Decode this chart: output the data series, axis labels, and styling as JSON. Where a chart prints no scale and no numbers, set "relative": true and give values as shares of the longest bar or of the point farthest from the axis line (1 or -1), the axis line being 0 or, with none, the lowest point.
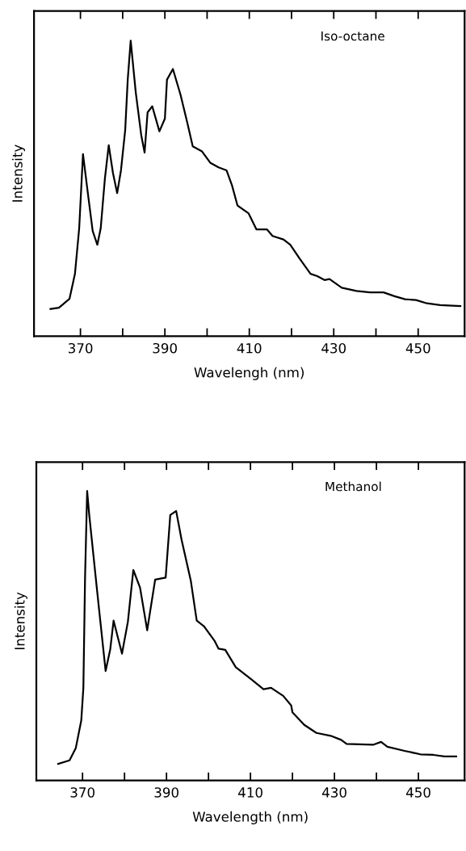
{
  "chart_data": [
    {
      "type": "line",
      "relative": true,
      "xlabel": "Wavelengh (nm)",
      "ylabel": "Intensity",
      "annotations": [
        "Iso-octane"
      ],
      "xlim": [
        359,
        461
      ],
      "xticks": [
        370,
        {
          "value": 380,
          "label": null
        },
        390,
        {
          "value": 400,
          "label": null
        },
        410,
        {
          "value": 420,
          "label": null
        },
        430,
        {
          "value": 440,
          "label": null
        },
        450
      ],
      "tick_labels": "x",
      "grid": false,
      "legend": false,
      "marker": "none",
      "line_style": "solid",
      "series": [
        {
          "color": "#000000",
          "x": [
            362.9,
            364.9,
            367.4,
            368.7,
            369.7,
            370.6,
            371.9,
            372.9,
            374.0,
            374.8,
            375.8,
            376.7,
            377.7,
            378.7,
            379.6,
            380.6,
            381.2,
            381.9,
            383.1,
            384.4,
            385.2,
            385.9,
            387.0,
            388.7,
            390.0,
            390.5,
            391.9,
            393.7,
            395.3,
            396.6,
            398.8,
            400.8,
            402.7,
            404.6,
            405.9,
            407.2,
            409.8,
            411.7,
            414.2,
            415.5,
            418.1,
            419.7,
            421.9,
            424.5,
            426.1,
            427.8,
            429.0,
            431.9,
            435.4,
            438.6,
            441.8,
            444.4,
            446.9,
            449.5,
            452.1,
            455.2,
            460.0
          ],
          "values": [
            0.092,
            0.096,
            0.126,
            0.211,
            0.365,
            0.616,
            0.467,
            0.356,
            0.309,
            0.365,
            0.535,
            0.646,
            0.552,
            0.484,
            0.561,
            0.697,
            0.868,
            1.0,
            0.825,
            0.68,
            0.621,
            0.757,
            0.778,
            0.693,
            0.736,
            0.868,
            0.904,
            0.817,
            0.723,
            0.642,
            0.625,
            0.586,
            0.571,
            0.561,
            0.51,
            0.442,
            0.416,
            0.361,
            0.361,
            0.339,
            0.327,
            0.309,
            0.263,
            0.211,
            0.203,
            0.19,
            0.193,
            0.164,
            0.153,
            0.148,
            0.148,
            0.135,
            0.125,
            0.122,
            0.111,
            0.105,
            0.102
          ]
        }
      ]
    },
    {
      "type": "line",
      "relative": true,
      "xlabel": "Wavelength (nm)",
      "ylabel": "Intensity",
      "annotations": [
        "Methanol"
      ],
      "xlim": [
        359,
        461
      ],
      "xticks": [
        370,
        {
          "value": 380,
          "label": null
        },
        390,
        {
          "value": 400,
          "label": null
        },
        410,
        {
          "value": 420,
          "label": null
        },
        430,
        {
          "value": 440,
          "label": null
        },
        450
      ],
      "tick_labels": "x",
      "grid": false,
      "legend": false,
      "marker": "none",
      "line_style": "solid",
      "series": [
        {
          "color": "#000000",
          "x": [
            364.2,
            366.9,
            368.4,
            369.7,
            370.2,
            370.6,
            371.1,
            371.6,
            373.5,
            375.5,
            376.6,
            377.4,
            379.4,
            380.8,
            382.1,
            383.7,
            385.4,
            387.3,
            389.8,
            390.9,
            392.3,
            393.6,
            395.8,
            397.2,
            398.9,
            401.5,
            402.4,
            404.0,
            406.5,
            410.2,
            413.1,
            414.9,
            417.8,
            419.7,
            420.0,
            422.8,
            425.7,
            429.1,
            431.6,
            432.9,
            439.2,
            441.1,
            442.6,
            446.7,
            450.5,
            453.6,
            456.2,
            459.0
          ],
          "values": [
            0.057,
            0.069,
            0.112,
            0.207,
            0.32,
            0.699,
            1.0,
            0.917,
            0.651,
            0.378,
            0.453,
            0.552,
            0.438,
            0.548,
            0.727,
            0.666,
            0.519,
            0.694,
            0.701,
            0.917,
            0.931,
            0.831,
            0.689,
            0.552,
            0.533,
            0.481,
            0.455,
            0.451,
            0.391,
            0.349,
            0.315,
            0.32,
            0.292,
            0.259,
            0.235,
            0.192,
            0.164,
            0.154,
            0.14,
            0.126,
            0.123,
            0.133,
            0.116,
            0.102,
            0.09,
            0.088,
            0.083,
            0.083
          ]
        }
      ]
    }
  ]
}
